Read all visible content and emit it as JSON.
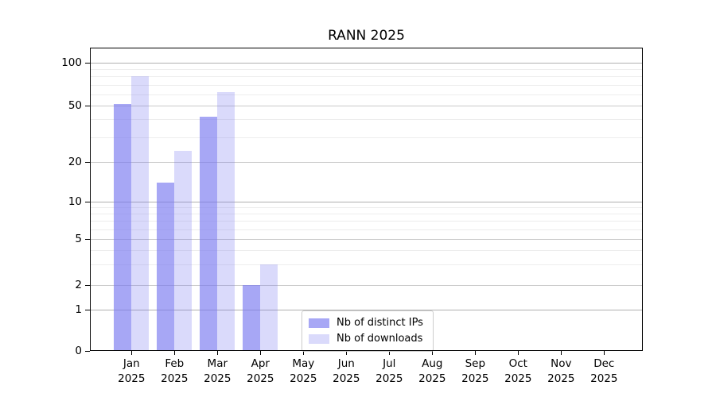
{
  "chart_data": {
    "type": "bar",
    "title": "RANN 2025",
    "categories": [
      "Jan",
      "Feb",
      "Mar",
      "Apr",
      "May",
      "Jun",
      "Jul",
      "Aug",
      "Sep",
      "Oct",
      "Nov",
      "Dec"
    ],
    "category_year": "2025",
    "series": [
      {
        "name": "Nb of distinct IPs",
        "color": "rgba(120,120,240,0.65)",
        "values": [
          51,
          14,
          42,
          2,
          0,
          0,
          0,
          0,
          0,
          0,
          0,
          0
        ]
      },
      {
        "name": "Nb of downloads",
        "color": "rgba(120,120,240,0.27)",
        "values": [
          80,
          24,
          62,
          3,
          0,
          0,
          0,
          0,
          0,
          0,
          0,
          0
        ]
      }
    ],
    "yscale": "symlog",
    "ylim": [
      0,
      140
    ],
    "y_ticks": [
      0,
      1,
      2,
      5,
      10,
      20,
      50,
      100
    ],
    "y_minor_gridlines": [
      3,
      4,
      6,
      7,
      8,
      9,
      30,
      40,
      60,
      70,
      80,
      90
    ],
    "grid": true,
    "legend_position": "inside-lower-left-of-center",
    "colors": {
      "major_grid": "#b0b0b0",
      "mid_grid": "#c9c9c9",
      "minor_grid": "#ededed",
      "spine": "#000000",
      "legend_border": "#cccccc",
      "background": "#ffffff"
    }
  }
}
